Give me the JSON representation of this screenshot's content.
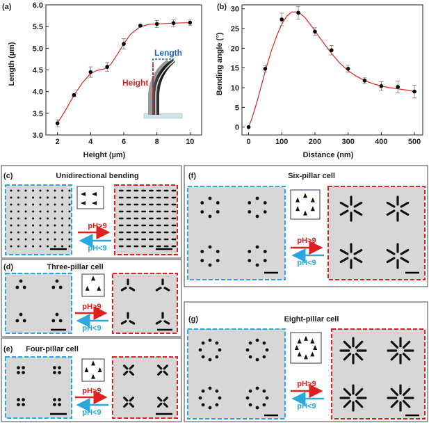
{
  "chart_data": [
    {
      "panel": "(a)",
      "type": "line",
      "xlabel": "Height (µm)",
      "ylabel": "Length (µm)",
      "xlim": [
        1.3,
        10.7
      ],
      "ylim": [
        3.0,
        6.0
      ],
      "xticks": [
        2,
        4,
        6,
        8,
        10
      ],
      "yticks": [
        3.0,
        3.5,
        4.0,
        4.5,
        5.0,
        5.5,
        6.0
      ],
      "x": [
        2,
        3,
        4,
        5,
        6,
        7,
        8,
        9,
        10
      ],
      "y": [
        3.27,
        3.92,
        4.45,
        4.57,
        5.1,
        5.52,
        5.56,
        5.58,
        5.59
      ],
      "err": [
        0.08,
        0.03,
        0.12,
        0.1,
        0.12,
        0.03,
        0.08,
        0.08,
        0.06
      ],
      "fit": [
        [
          2,
          3.27
        ],
        [
          2.5,
          3.58
        ],
        [
          3,
          3.92
        ],
        [
          3.5,
          4.2
        ],
        [
          4,
          4.42
        ],
        [
          4.4,
          4.49
        ],
        [
          4.8,
          4.52
        ],
        [
          5.2,
          4.62
        ],
        [
          5.6,
          4.85
        ],
        [
          6,
          5.1
        ],
        [
          6.4,
          5.32
        ],
        [
          7,
          5.5
        ],
        [
          7.5,
          5.55
        ],
        [
          8,
          5.56
        ],
        [
          9,
          5.58
        ],
        [
          10,
          5.59
        ]
      ],
      "inset_labels": {
        "length": "Length",
        "height": "Height"
      }
    },
    {
      "panel": "(b)",
      "type": "line",
      "xlabel": "Distance (nm)",
      "ylabel": "Bending angle (°)",
      "xlim": [
        -20,
        525
      ],
      "ylim": [
        -2,
        31
      ],
      "xticks": [
        0,
        100,
        200,
        300,
        400,
        500
      ],
      "yticks": [
        0,
        5,
        10,
        15,
        20,
        25,
        30
      ],
      "x": [
        0,
        50,
        100,
        150,
        200,
        250,
        300,
        350,
        400,
        450,
        500
      ],
      "y": [
        0,
        14.8,
        27.3,
        29,
        24.2,
        19.5,
        14.8,
        11.8,
        10.4,
        10.2,
        9.0
      ],
      "err": [
        0,
        0.8,
        1.6,
        1.6,
        1.0,
        1.2,
        0.9,
        0.7,
        1.1,
        1.5,
        1.6
      ],
      "fit": [
        [
          0,
          0
        ],
        [
          10,
          2.2
        ],
        [
          25,
          6.3
        ],
        [
          40,
          11
        ],
        [
          55,
          15.6
        ],
        [
          70,
          19.7
        ],
        [
          85,
          23.2
        ],
        [
          100,
          26.1
        ],
        [
          115,
          28.1
        ],
        [
          130,
          29.2
        ],
        [
          150,
          29.2
        ],
        [
          170,
          27.8
        ],
        [
          190,
          25.6
        ],
        [
          210,
          23.2
        ],
        [
          230,
          20.9
        ],
        [
          250,
          18.7
        ],
        [
          275,
          16.2
        ],
        [
          300,
          14.3
        ],
        [
          325,
          12.9
        ],
        [
          350,
          11.8
        ],
        [
          375,
          11.0
        ],
        [
          400,
          10.4
        ],
        [
          425,
          10.0
        ],
        [
          450,
          9.7
        ],
        [
          475,
          9.4
        ],
        [
          500,
          9.0
        ]
      ]
    }
  ],
  "panels": {
    "c": {
      "label": "(c)",
      "title": "Unidirectional bending"
    },
    "d": {
      "label": "(d)",
      "title": "Three-pillar cell"
    },
    "e": {
      "label": "(e)",
      "title": "Four-pillar cell"
    },
    "f": {
      "label": "(f)",
      "title": "Six-pillar cell"
    },
    "g": {
      "label": "(g)",
      "title": "Eight-pillar cell"
    }
  },
  "arrows": {
    "forward": "pH>9",
    "backward": "pH<9"
  },
  "colors": {
    "blue": "#29a8e0",
    "red": "#e02020",
    "fit": "#e02020",
    "bg": "#d7d7d7"
  }
}
